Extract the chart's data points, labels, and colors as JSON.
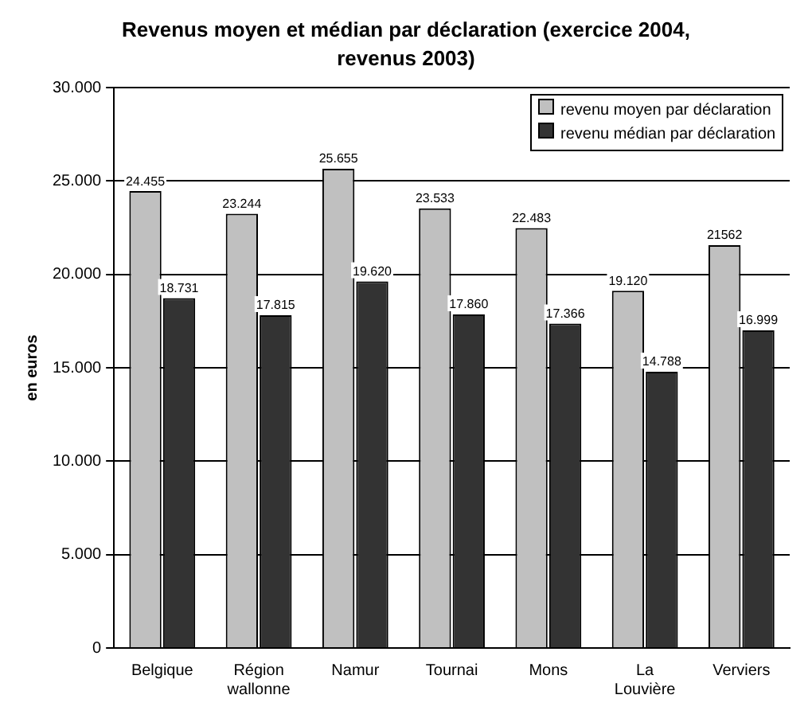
{
  "chart_data": {
    "type": "bar",
    "title": "Revenus moyen et médian par déclaration (exercice 2004, revenus 2003)",
    "ylabel": "en euros",
    "categories": [
      "Belgique",
      "Région wallonne",
      "Namur",
      "Tournai",
      "Mons",
      "La Louvière",
      "Verviers"
    ],
    "series": [
      {
        "name": "revenu moyen par déclaration",
        "color": "#c0c0c0",
        "values": [
          24455,
          23244,
          25655,
          23533,
          22483,
          19120,
          21562
        ],
        "value_labels": [
          "24.455",
          "23.244",
          "25.655",
          "23.533",
          "22.483",
          "19.120",
          "21562"
        ]
      },
      {
        "name": "revenu médian par déclaration",
        "color": "#333333",
        "values": [
          18731,
          17815,
          19620,
          17860,
          17366,
          14788,
          16999
        ],
        "value_labels": [
          "18.731",
          "17.815",
          "19.620",
          "17.860",
          "17.366",
          "14.788",
          "16.999"
        ]
      }
    ],
    "ylim": [
      0,
      30000
    ],
    "yticks": [
      {
        "value": 0,
        "label": "0"
      },
      {
        "value": 5000,
        "label": "5.000"
      },
      {
        "value": 10000,
        "label": "10.000"
      },
      {
        "value": 15000,
        "label": "15.000"
      },
      {
        "value": 20000,
        "label": "20.000"
      },
      {
        "value": 25000,
        "label": "25.000"
      },
      {
        "value": 30000,
        "label": "30.000"
      }
    ],
    "grid": "y",
    "legend": "top right"
  }
}
